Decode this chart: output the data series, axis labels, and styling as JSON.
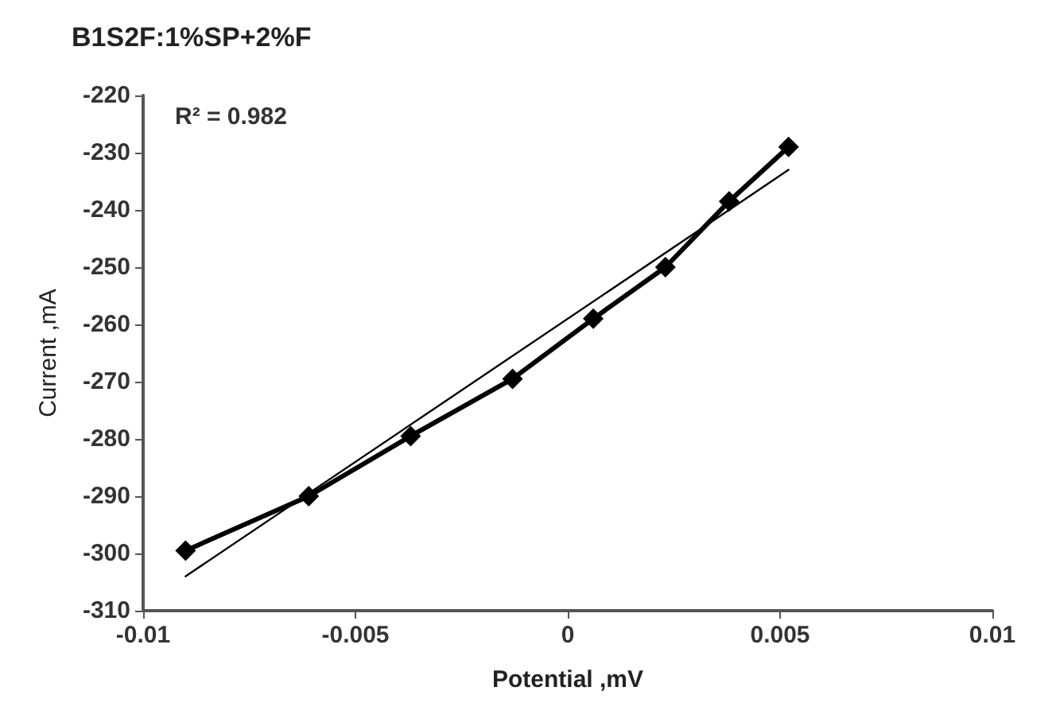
{
  "chart_data": {
    "type": "line",
    "title": "B1S2F:1%SP+2%F",
    "xlabel": "Potential ,mV",
    "ylabel": "Current ,mA",
    "annotations": [
      "R² = 0.982"
    ],
    "x": [
      -0.009,
      -0.0061,
      -0.0037,
      -0.0013,
      0.0006,
      0.0023,
      0.0038,
      0.0052
    ],
    "series": [
      {
        "color": "#000000",
        "values": [
          -299.5,
          -290,
          -279.5,
          -269.5,
          -259,
          -250,
          -238.5,
          -229
        ],
        "marker": "diamond"
      },
      {
        "type": "line",
        "color": "#000000",
        "x": [
          -0.009,
          0.0052
        ],
        "values": [
          -304,
          -233
        ],
        "marker": "none"
      }
    ],
    "xlim": [
      -0.01,
      0.01
    ],
    "xticks": [
      -0.01,
      -0.005,
      0,
      0.005,
      0.01
    ],
    "ylim": [
      -310,
      -220
    ],
    "yticks": [
      -310,
      -300,
      -290,
      -280,
      -270,
      -260,
      -250,
      -240,
      -230,
      -220
    ],
    "grid": false
  }
}
